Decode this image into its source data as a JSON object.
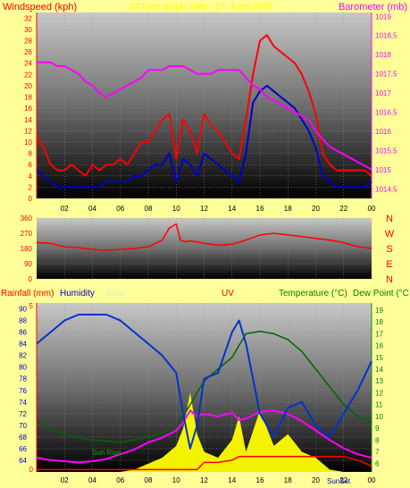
{
  "header": {
    "left_label": "Windspeed (kph)",
    "center_label": "24 hour graph, date : 17. June 2009",
    "right_label": "Barometer (mb)"
  },
  "footer": {
    "rainfall_label": "Rainfall (mm)",
    "humidity_label": "Humidity",
    "solar_label": "Solar",
    "uv_label": "UV",
    "temperature_label": "Temperature (°C)",
    "dewpoint_label": "Dew Point (°C",
    "sunrise_label": "Sun Rise",
    "sunset_label": "SunSet"
  },
  "compass_letters": [
    "N",
    "W",
    "S",
    "E",
    "N"
  ],
  "colors": {
    "background": "#ffff99",
    "windspeed": "#ff0000",
    "gust": "#0000cc",
    "barometer": "#ff00ff",
    "direction": "#ff0000",
    "humidity": "#0033cc",
    "solar": "#ffff00",
    "uv": "#ff0000",
    "temperature": "#ff00ff",
    "dewpoint": "#006600",
    "rain": "#ff0000"
  },
  "chart_data": [
    {
      "type": "line",
      "title": "24 hour graph, date : 17. June 2009",
      "x_ticks": [
        "02",
        "04",
        "06",
        "08",
        "10",
        "12",
        "14",
        "16",
        "18",
        "20",
        "22",
        "00"
      ],
      "ylabel_left": "Windspeed (kph)",
      "ylim_left": [
        0,
        33
      ],
      "yticks_left": [
        "0",
        "2",
        "4",
        "6",
        "8",
        "10",
        "12",
        "14",
        "16",
        "18",
        "20",
        "22",
        "24",
        "26",
        "28",
        "30",
        "32"
      ],
      "ylabel_right": "Barometer (mb)",
      "ylim_right": [
        1014.25,
        1019.1
      ],
      "yticks_right": [
        "1014,5",
        "1015",
        "1015,5",
        "1016",
        "1016,5",
        "1017",
        "1017,5",
        "1018",
        "1018,5",
        "1019"
      ],
      "x_hours": [
        0,
        0.5,
        1,
        1.5,
        2,
        2.5,
        3,
        3.5,
        4,
        4.5,
        5,
        5.5,
        6,
        6.5,
        7,
        7.5,
        8,
        8.5,
        9,
        9.5,
        10,
        10.5,
        11,
        11.5,
        12,
        12.5,
        13,
        13.5,
        14,
        14.5,
        15,
        15.5,
        16,
        16.5,
        17,
        17.5,
        18,
        18.5,
        19,
        19.5,
        20,
        20.5,
        21,
        21.5,
        22,
        22.5,
        23,
        23.5,
        24
      ],
      "series": [
        {
          "name": "Windspeed (kph)",
          "axis": "left",
          "values": [
            11,
            9,
            6,
            5,
            5,
            6,
            5,
            4,
            6,
            5,
            6,
            6,
            7,
            6,
            8,
            10,
            10,
            12,
            14,
            15,
            7,
            14,
            12,
            8,
            15,
            13,
            12,
            10,
            8,
            7,
            14,
            22,
            28,
            29,
            27,
            26,
            25,
            24,
            22,
            19,
            15,
            8,
            6,
            5,
            5,
            5,
            5,
            5,
            4
          ]
        },
        {
          "name": "Gust",
          "axis": "left",
          "values": [
            5,
            4,
            3,
            2,
            2,
            2,
            2,
            2,
            2,
            2,
            3,
            3,
            3,
            3,
            4,
            4,
            5,
            6,
            6,
            8,
            3,
            7,
            6,
            4,
            8,
            7,
            6,
            5,
            4,
            3,
            8,
            17,
            19,
            20,
            19,
            18,
            17,
            16,
            14,
            12,
            9,
            4,
            3,
            2,
            2,
            2,
            2,
            2,
            3
          ]
        },
        {
          "name": "Barometer (mb)",
          "axis": "right",
          "values": [
            1017.8,
            1017.8,
            1017.8,
            1017.7,
            1017.7,
            1017.6,
            1017.5,
            1017.3,
            1017.2,
            1017.0,
            1016.9,
            1017.0,
            1017.1,
            1017.2,
            1017.3,
            1017.4,
            1017.6,
            1017.6,
            1017.6,
            1017.7,
            1017.7,
            1017.7,
            1017.6,
            1017.5,
            1017.5,
            1017.5,
            1017.6,
            1017.6,
            1017.6,
            1017.6,
            1017.4,
            1017.2,
            1017.1,
            1016.9,
            1016.8,
            1016.7,
            1016.6,
            1016.5,
            1016.4,
            1016.3,
            1016.0,
            1015.8,
            1015.6,
            1015.5,
            1015.4,
            1015.3,
            1015.2,
            1015.1,
            1015.0
          ]
        }
      ]
    },
    {
      "type": "line",
      "title": "",
      "ylim": [
        0,
        360
      ],
      "yticks": [
        "0",
        "90",
        "180",
        "270",
        "360"
      ],
      "x_hours": [
        0,
        1,
        2,
        3,
        4,
        5,
        6,
        7,
        8,
        9,
        9.5,
        10,
        10.3,
        10.6,
        11,
        12,
        13,
        14,
        15,
        16,
        17,
        18,
        19,
        20,
        21,
        22,
        23,
        24
      ],
      "series": [
        {
          "name": "",
          "values": [
            215,
            210,
            190,
            185,
            175,
            170,
            175,
            180,
            190,
            230,
            300,
            325,
            230,
            220,
            225,
            210,
            200,
            205,
            230,
            260,
            270,
            260,
            250,
            240,
            230,
            215,
            190,
            180
          ]
        }
      ]
    },
    {
      "type": "line",
      "title": "",
      "x_ticks": [
        "02",
        "04",
        "06",
        "08",
        "10",
        "12",
        "14",
        "16",
        "18",
        "20",
        "22",
        "00"
      ],
      "ylabel_left": "Humidity",
      "ylim_left": [
        62,
        91
      ],
      "yticks_left": [
        "64",
        "66",
        "68",
        "70",
        "72",
        "74",
        "76",
        "78",
        "80",
        "82",
        "84",
        "86",
        "88",
        "90"
      ],
      "ylabel_right": "Temperature (°C)",
      "ylim_right": [
        5.3,
        19.6
      ],
      "yticks_right": [
        "6",
        "7",
        "8",
        "9",
        "10",
        "11",
        "12",
        "13",
        "14",
        "15",
        "16",
        "17",
        "18",
        "19"
      ],
      "rain_axis_ticks": [
        "0",
        "5"
      ],
      "x_hours": [
        0,
        1,
        2,
        3,
        4,
        5,
        6,
        7,
        8,
        9,
        10,
        10.5,
        11,
        11.5,
        12,
        13,
        14,
        14.5,
        15,
        16,
        17,
        18,
        19,
        20,
        21,
        22,
        23,
        24
      ],
      "series": [
        {
          "name": "Humidity",
          "axis": "left",
          "values": [
            84,
            86,
            88,
            89,
            89,
            89,
            88,
            86,
            84,
            82,
            79,
            72,
            66,
            70,
            78,
            79,
            86,
            88,
            84,
            72,
            68,
            73,
            74,
            70,
            68,
            72,
            76,
            81
          ]
        },
        {
          "name": "Temperature (°C)",
          "axis": "right",
          "values": [
            6.5,
            6.3,
            6.2,
            6.1,
            6.2,
            6.4,
            6.8,
            7.2,
            7.8,
            8.2,
            8.8,
            9.5,
            10.5,
            10.0,
            10.2,
            10.0,
            10.3,
            9.7,
            9.8,
            10.4,
            10.5,
            10.2,
            9.6,
            8.8,
            8.0,
            7.3,
            6.8,
            6.5
          ]
        },
        {
          "name": "Dew Point (°C",
          "axis": "right",
          "values": [
            9.5,
            9.0,
            8.5,
            8.2,
            8.0,
            7.9,
            7.8,
            8.0,
            8.3,
            8.6,
            9.2,
            10.0,
            11.0,
            12.0,
            13.0,
            14.0,
            15.0,
            16.0,
            17.0,
            17.2,
            17.0,
            16.5,
            15.5,
            14.0,
            12.5,
            11.0,
            10.0,
            9.5
          ]
        },
        {
          "name": "Solar",
          "axis": "right",
          "values": [
            5.3,
            5.3,
            5.3,
            5.3,
            5.3,
            5.3,
            5.3,
            5.5,
            6.0,
            6.5,
            7.5,
            9.0,
            12.0,
            8.5,
            7.0,
            6.5,
            8.0,
            10.0,
            7.0,
            10.5,
            7.5,
            8.5,
            7.0,
            6.5,
            5.5,
            5.3,
            5.3,
            5.3
          ]
        },
        {
          "name": "UV",
          "axis": "right",
          "values": [
            5.5,
            5.5,
            5.5,
            5.5,
            5.5,
            5.5,
            5.5,
            5.5,
            5.5,
            5.5,
            5.5,
            5.5,
            5.5,
            5.5,
            6.1,
            6.1,
            6.3,
            6.6,
            6.6,
            6.6,
            6.6,
            6.6,
            6.6,
            6.6,
            6.6,
            6.6,
            6.3,
            5.8
          ]
        }
      ]
    }
  ]
}
